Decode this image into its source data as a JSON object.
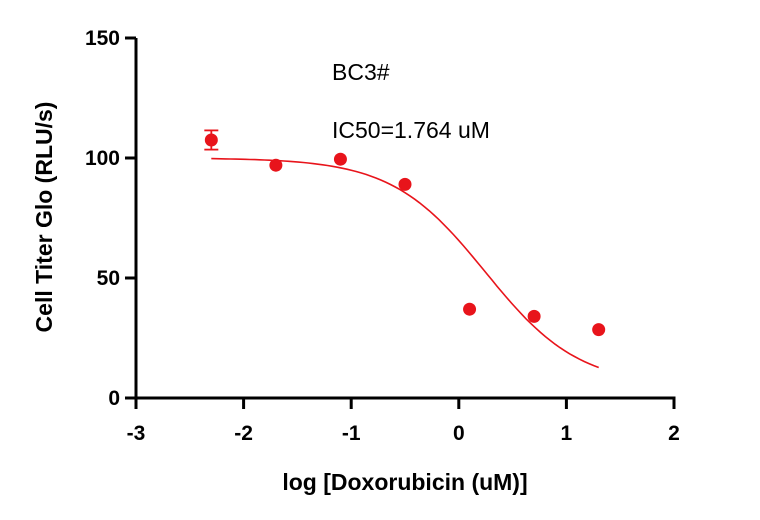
{
  "chart_data": {
    "type": "scatter",
    "xlabel": "log [Doxorubicin (uM)]",
    "ylabel": "Cell Titer Glo (RLU/s)",
    "xlim": [
      -3,
      2
    ],
    "ylim": [
      0,
      150
    ],
    "xticks": [
      -3,
      -2,
      -1,
      0,
      1,
      2
    ],
    "yticks": [
      0,
      50,
      100,
      150
    ],
    "xtick_labels": [
      "-3",
      "-2",
      "-1",
      "0",
      "1",
      "2"
    ],
    "ytick_labels": [
      "0",
      "50",
      "100",
      "150"
    ],
    "grid": false,
    "annotations": [
      "BC3#",
      "IC50=1.764 uM"
    ],
    "color": "#e8141b",
    "series": [
      {
        "x": [
          -2.3,
          -1.7,
          -1.1,
          -0.5,
          0.1,
          0.7,
          1.3
        ],
        "y": [
          107.5,
          97,
          99.5,
          89,
          37,
          34,
          28.5
        ],
        "error": [
          4,
          0,
          0,
          0,
          0,
          0,
          0
        ]
      }
    ],
    "fit": {
      "model": "four-parameter logistic",
      "x_range": [
        -2.3,
        1.3
      ],
      "top": 100,
      "bottom": 5,
      "log_ic50": 0.2465,
      "hill_slope": -1
    }
  }
}
